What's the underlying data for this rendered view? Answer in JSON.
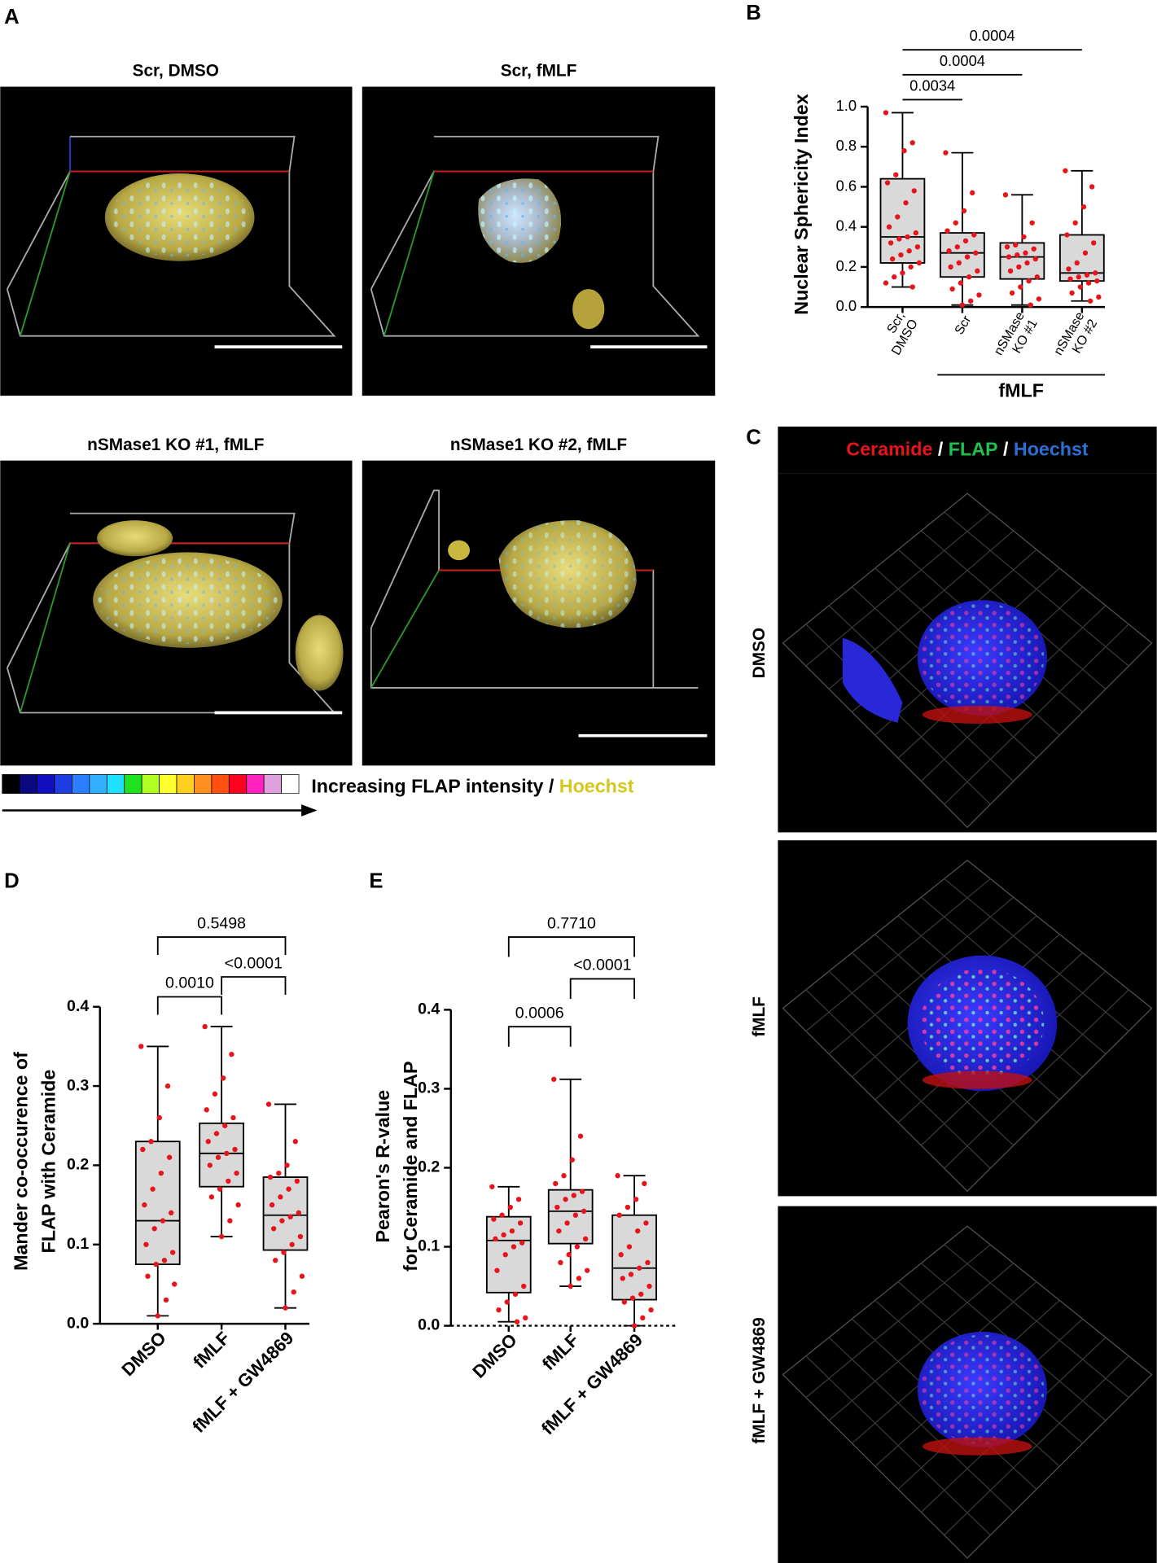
{
  "panel_labels": [
    "A",
    "B",
    "C",
    "D",
    "E"
  ],
  "panel_a": {
    "images": [
      {
        "title": "Scr, DMSO"
      },
      {
        "title": "Scr, fMLF"
      },
      {
        "title": "nSMase1 KO #1, fMLF"
      },
      {
        "title": "nSMase1 KO #2, fMLF"
      }
    ],
    "colorbar": {
      "label": "Increasing FLAP intensity /",
      "hoechst": "Hoechst"
    }
  },
  "panel_c": {
    "header": [
      "Ceramide",
      "/",
      "FLAP",
      "/",
      "Hoechst"
    ],
    "rows": [
      "DMSO",
      "fMLF",
      "fMLF + GW4869"
    ]
  },
  "chart_data": [
    {
      "type": "box",
      "y_label": [
        "Nuclear Sphericity Index"
      ],
      "categories": [
        [
          "Scr,",
          "DMSO"
        ],
        [
          "Scr"
        ],
        [
          "nSMase",
          "KO #1"
        ],
        [
          "nSMase",
          "KO #2"
        ]
      ],
      "group_label": "fMLF",
      "group": [
        1,
        3
      ],
      "box_color": "#d9d9d9",
      "point_color": "#e8141b",
      "ylim": [
        0,
        1.0
      ],
      "yticks": [
        {
          "value": 0,
          "label": "0.0"
        },
        0.2,
        0.4,
        0.6,
        0.8,
        {
          "value": 1.0,
          "label": "1.0"
        }
      ],
      "comparisons": [
        {
          "pair": [
            0,
            1
          ],
          "p": "0.0034"
        },
        {
          "pair": [
            0,
            2
          ],
          "p": "0.0004"
        },
        {
          "pair": [
            0,
            3
          ],
          "p": "0.0004"
        }
      ],
      "boxes": [
        {
          "min": 0.1,
          "q1": 0.22,
          "median": 0.35,
          "q3": 0.64,
          "max": 0.97,
          "points": [
            0.97,
            0.82,
            0.78,
            0.66,
            0.62,
            0.58,
            0.52,
            0.45,
            0.4,
            0.37,
            0.35,
            0.34,
            0.32,
            0.3,
            0.28,
            0.26,
            0.24,
            0.22,
            0.2,
            0.17,
            0.15,
            0.12,
            0.1
          ]
        },
        {
          "min": 0.01,
          "q1": 0.15,
          "median": 0.27,
          "q3": 0.37,
          "max": 0.77,
          "points": [
            0.77,
            0.57,
            0.48,
            0.42,
            0.38,
            0.36,
            0.33,
            0.3,
            0.28,
            0.27,
            0.25,
            0.22,
            0.2,
            0.18,
            0.15,
            0.12,
            0.09,
            0.06,
            0.03,
            0.01
          ]
        },
        {
          "min": 0.01,
          "q1": 0.14,
          "median": 0.25,
          "q3": 0.32,
          "max": 0.56,
          "points": [
            0.56,
            0.42,
            0.35,
            0.31,
            0.3,
            0.29,
            0.27,
            0.26,
            0.25,
            0.24,
            0.22,
            0.2,
            0.18,
            0.15,
            0.13,
            0.1,
            0.07,
            0.04,
            0.01
          ]
        },
        {
          "min": 0.03,
          "q1": 0.13,
          "median": 0.17,
          "q3": 0.36,
          "max": 0.68,
          "points": [
            0.68,
            0.6,
            0.5,
            0.42,
            0.36,
            0.32,
            0.27,
            0.22,
            0.19,
            0.17,
            0.16,
            0.15,
            0.14,
            0.13,
            0.12,
            0.1,
            0.07,
            0.05,
            0.03
          ]
        }
      ]
    },
    {
      "type": "box",
      "y_label": [
        "Mander co-occurence of",
        "FLAP with Ceramide"
      ],
      "categories": [
        [
          "DMSO"
        ],
        [
          "fMLF"
        ],
        [
          "fMLF + GW4869"
        ]
      ],
      "box_color": "#d9d9d9",
      "point_color": "#e8141b",
      "ylim": [
        0,
        0.4
      ],
      "yticks": [
        {
          "value": 0,
          "label": "0.0"
        },
        0.1,
        0.2,
        0.3,
        0.4
      ],
      "comparisons": [
        {
          "pair": [
            0,
            1
          ],
          "p": "0.0010"
        },
        {
          "pair": [
            1,
            2
          ],
          "p": "<0.0001"
        },
        {
          "pair": [
            0,
            2
          ],
          "p": "0.5498"
        }
      ],
      "boxes": [
        {
          "min": 0.01,
          "q1": 0.075,
          "median": 0.13,
          "q3": 0.23,
          "max": 0.35,
          "points": [
            0.35,
            0.3,
            0.26,
            0.23,
            0.22,
            0.21,
            0.19,
            0.17,
            0.15,
            0.14,
            0.13,
            0.12,
            0.1,
            0.09,
            0.08,
            0.075,
            0.06,
            0.05,
            0.03,
            0.01
          ]
        },
        {
          "min": 0.11,
          "q1": 0.173,
          "median": 0.215,
          "q3": 0.253,
          "max": 0.375,
          "points": [
            0.375,
            0.34,
            0.31,
            0.29,
            0.27,
            0.26,
            0.25,
            0.24,
            0.23,
            0.22,
            0.215,
            0.21,
            0.2,
            0.19,
            0.18,
            0.17,
            0.16,
            0.15,
            0.13,
            0.11
          ]
        },
        {
          "min": 0.02,
          "q1": 0.093,
          "median": 0.137,
          "q3": 0.185,
          "max": 0.277,
          "points": [
            0.277,
            0.23,
            0.2,
            0.19,
            0.185,
            0.18,
            0.17,
            0.16,
            0.15,
            0.14,
            0.135,
            0.13,
            0.12,
            0.11,
            0.1,
            0.09,
            0.08,
            0.06,
            0.04,
            0.02
          ]
        }
      ]
    },
    {
      "type": "box",
      "y_label": [
        "Pearon's R-value",
        "for Ceramide and FLAP"
      ],
      "categories": [
        [
          "DMSO"
        ],
        [
          "fMLF"
        ],
        [
          "fMLF + GW4869"
        ]
      ],
      "box_color": "#d9d9d9",
      "point_color": "#e8141b",
      "zero_line": "dotted",
      "ylim": [
        0,
        0.4
      ],
      "yticks": [
        {
          "value": 0,
          "label": "0.0"
        },
        0.1,
        0.2,
        0.3,
        0.4
      ],
      "comparisons": [
        {
          "pair": [
            0,
            1
          ],
          "p": "0.0006"
        },
        {
          "pair": [
            1,
            2
          ],
          "p": "<0.0001"
        },
        {
          "pair": [
            0,
            2
          ],
          "p": "0.7710"
        }
      ],
      "boxes": [
        {
          "min": 0.005,
          "q1": 0.042,
          "median": 0.108,
          "q3": 0.138,
          "max": 0.176,
          "points": [
            0.176,
            0.16,
            0.15,
            0.14,
            0.135,
            0.13,
            0.12,
            0.115,
            0.11,
            0.105,
            0.1,
            0.09,
            0.07,
            0.05,
            0.04,
            0.03,
            0.02,
            0.01,
            0.005
          ]
        },
        {
          "min": 0.05,
          "q1": 0.104,
          "median": 0.145,
          "q3": 0.172,
          "max": 0.312,
          "points": [
            0.312,
            0.24,
            0.21,
            0.19,
            0.18,
            0.17,
            0.165,
            0.16,
            0.15,
            0.145,
            0.14,
            0.13,
            0.12,
            0.11,
            0.1,
            0.09,
            0.08,
            0.07,
            0.06,
            0.05
          ]
        },
        {
          "min": 0,
          "q1": 0.033,
          "median": 0.073,
          "q3": 0.14,
          "max": 0.19,
          "points": [
            0.19,
            0.18,
            0.16,
            0.15,
            0.14,
            0.13,
            0.12,
            0.1,
            0.09,
            0.08,
            0.073,
            0.065,
            0.06,
            0.05,
            0.04,
            0.035,
            0.03,
            0.02,
            0.01,
            0
          ]
        }
      ]
    }
  ]
}
